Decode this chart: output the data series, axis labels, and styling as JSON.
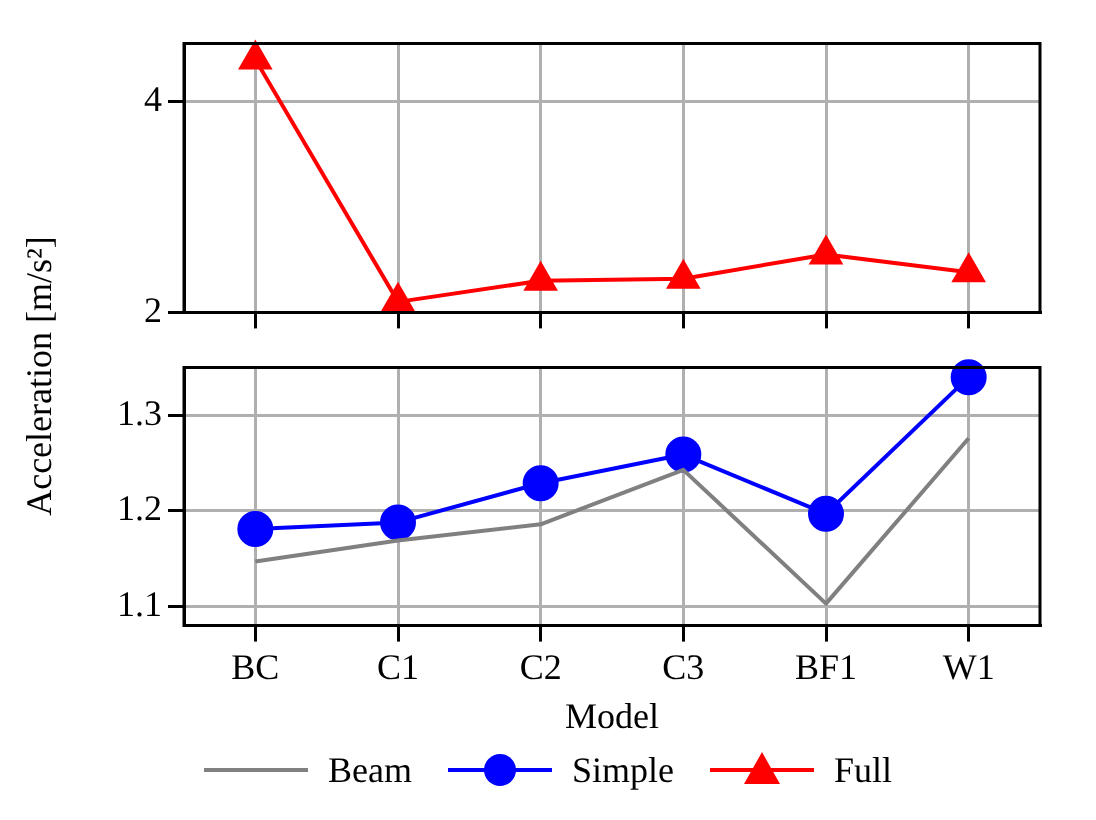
{
  "chart_data": [
    {
      "type": "line",
      "ylabel": "Acceleration [m/s²]",
      "categories": [
        null,
        null,
        null,
        null,
        null,
        null
      ],
      "ylim": [
        2,
        4.55
      ],
      "yticks": [
        2,
        4
      ],
      "grid": true,
      "legend": "bottom",
      "tick_labels": "y",
      "series": [
        {
          "name": "Full",
          "color": "#ff0000",
          "marker": "triangle",
          "values": [
            4.4,
            2.1,
            2.3,
            2.32,
            2.55,
            2.38
          ]
        }
      ]
    },
    {
      "type": "line",
      "xlabel": "Model",
      "categories": [
        "BC",
        "C1",
        "C2",
        "C3",
        "BF1",
        "W1"
      ],
      "ylim": [
        1.08,
        1.35
      ],
      "yticks": [
        1.1,
        1.2,
        1.3
      ],
      "grid": true,
      "legend": "bottom",
      "series": [
        {
          "name": "Beam",
          "color": "#808080",
          "marker": "none",
          "values": [
            1.147,
            1.169,
            1.186,
            1.243,
            1.103,
            1.276
          ]
        },
        {
          "name": "Simple",
          "color": "#0000ff",
          "marker": "circle",
          "values": [
            1.181,
            1.188,
            1.229,
            1.259,
            1.197,
            1.34
          ]
        }
      ]
    }
  ]
}
